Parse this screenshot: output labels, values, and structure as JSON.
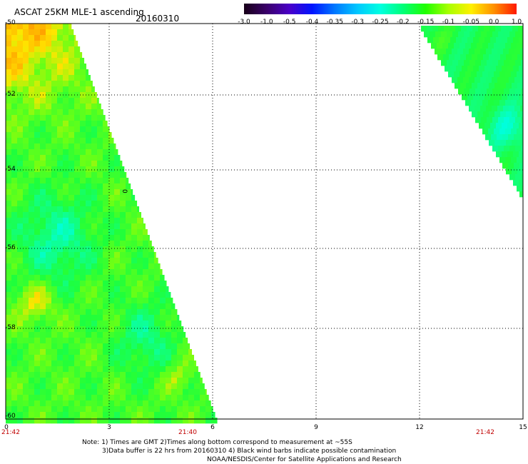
{
  "header": {
    "title": "ASCAT 25KM MLE-1 ascending",
    "date": "20160310"
  },
  "colorbar": {
    "labels": [
      "-3.0",
      "-1.0",
      "-0.5",
      "-0.4",
      "-0.35",
      "-0.3",
      "-0.25",
      "-0.2",
      "-0.15",
      "-0.1",
      "-0.05",
      "0.0",
      "1.0"
    ],
    "colors": [
      "#180018",
      "#3a006a",
      "#4a00c8",
      "#0014ff",
      "#0078ff",
      "#00c8ff",
      "#00ffe0",
      "#00ff78",
      "#20ff00",
      "#a8ff00",
      "#fff000",
      "#ff9000",
      "#ff1800"
    ]
  },
  "axes": {
    "y_ticks": [
      "-50",
      "-52",
      "-54",
      "-56",
      "-58",
      "-60"
    ],
    "x_ticks": [
      "0",
      "3",
      "6",
      "9",
      "12",
      "15"
    ],
    "times": [
      "21:42",
      "21:40",
      "21:42"
    ]
  },
  "annotation": {
    "label": "0"
  },
  "notes": {
    "line1": "Note: 1) Times are GMT 2)Times along bottom correspond to measurement at ~55S",
    "line2": "3)Data buffer is 22 hrs from 20160310 4) Black wind barbs indicate possible contamination",
    "line3": "NOAA/NESDIS/Center for Satellite Applications and Research"
  },
  "colors": {
    "grid": "#000000",
    "time_label": "#c00000"
  }
}
